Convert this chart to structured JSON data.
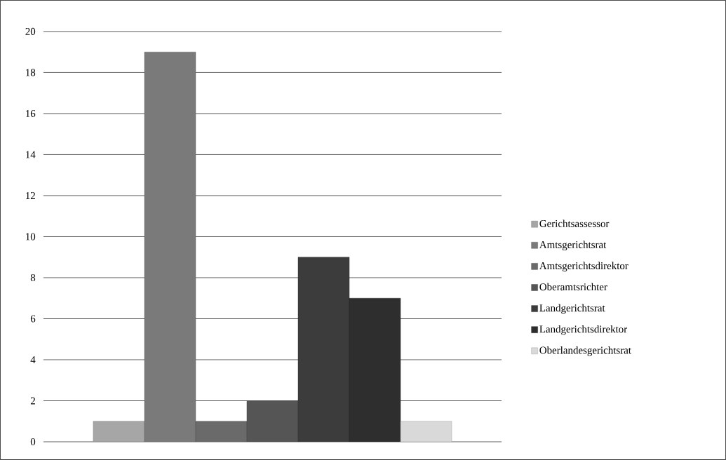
{
  "chart_data": {
    "type": "bar",
    "categories": [
      null
    ],
    "series": [
      {
        "name": "Gerichtsassessor",
        "color": "#a6a6a6",
        "values": [
          1
        ]
      },
      {
        "name": "Amtsgerichtsrat",
        "color": "#7a7a7a",
        "values": [
          19
        ]
      },
      {
        "name": "Amtsgerichtsdirektor",
        "color": "#6a6a6a",
        "values": [
          1
        ]
      },
      {
        "name": "Oberamtsrichter",
        "color": "#555555",
        "values": [
          2
        ]
      },
      {
        "name": "Landgerichtsrat",
        "color": "#3c3c3c",
        "values": [
          9
        ]
      },
      {
        "name": "Landgerichtsdirektor",
        "color": "#2e2e2e",
        "values": [
          7
        ]
      },
      {
        "name": "Oberlandesgerichtsrat",
        "color": "#d9d9d9",
        "values": [
          1
        ]
      }
    ],
    "ylim": [
      0,
      20
    ],
    "yticks": [
      0,
      2,
      4,
      6,
      8,
      10,
      12,
      14,
      16,
      18,
      20
    ],
    "grid": "y",
    "legend": "right"
  }
}
